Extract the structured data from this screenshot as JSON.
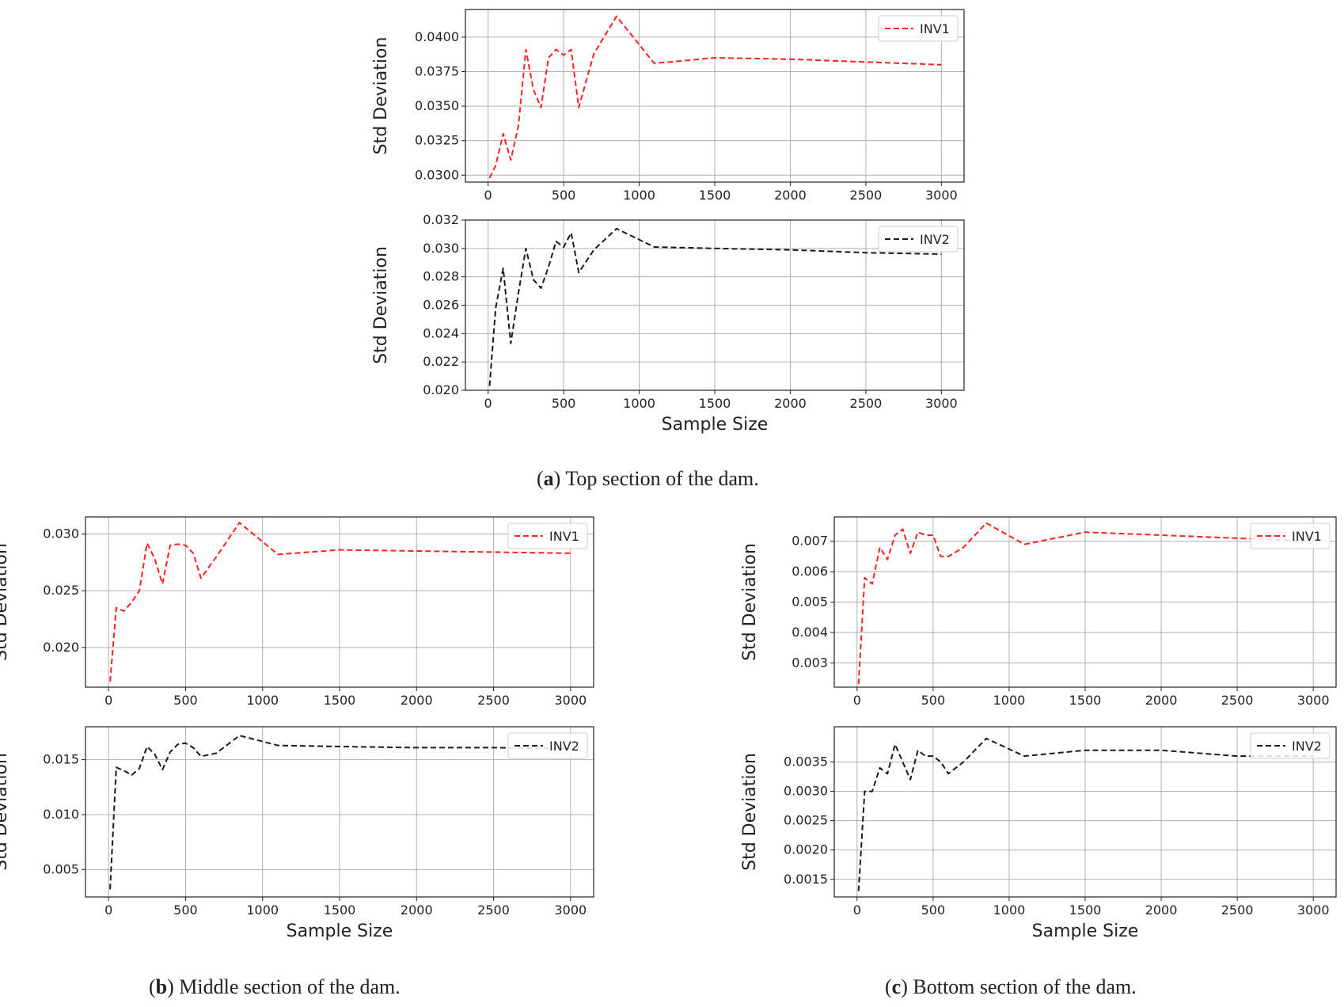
{
  "captions": {
    "a": {
      "prefix": "(",
      "letter": "a",
      "suffix": ") Top section of the dam."
    },
    "b": {
      "prefix": "(",
      "letter": "b",
      "suffix": ") Middle section of the dam."
    },
    "c": {
      "prefix": "(",
      "letter": "c",
      "suffix": ") Bottom section of the dam."
    }
  },
  "chart_data": [
    {
      "id": "a-inv1",
      "type": "line",
      "panel": "a",
      "ylabel": "Std Deviation",
      "xlabel": "",
      "xlim": [
        -150,
        3150
      ],
      "ylim": [
        0.0295,
        0.042
      ],
      "xticks": [
        0,
        500,
        1000,
        1500,
        2000,
        2500,
        3000
      ],
      "yticks": [
        0.03,
        0.0325,
        0.035,
        0.0375,
        0.04
      ],
      "ytick_labels": [
        "0.0300",
        "0.0325",
        "0.0350",
        "0.0375",
        "0.0400"
      ],
      "grid": true,
      "legend_position": "top-right",
      "series": [
        {
          "name": "INV1",
          "color": "#ff2020",
          "x": [
            10,
            50,
            100,
            150,
            200,
            250,
            300,
            350,
            400,
            450,
            500,
            550,
            600,
            700,
            850,
            1100,
            1500,
            2000,
            2500,
            3000
          ],
          "y": [
            0.0298,
            0.0307,
            0.033,
            0.0311,
            0.0335,
            0.0391,
            0.0362,
            0.0349,
            0.0385,
            0.0391,
            0.0387,
            0.0391,
            0.0349,
            0.0388,
            0.0415,
            0.0381,
            0.0385,
            0.0384,
            0.0382,
            0.038
          ]
        }
      ]
    },
    {
      "id": "a-inv2",
      "type": "line",
      "panel": "a",
      "ylabel": "Std Deviation",
      "xlabel": "Sample Size",
      "xlim": [
        -150,
        3150
      ],
      "ylim": [
        0.02,
        0.032
      ],
      "xticks": [
        0,
        500,
        1000,
        1500,
        2000,
        2500,
        3000
      ],
      "yticks": [
        0.02,
        0.022,
        0.024,
        0.026,
        0.028,
        0.03,
        0.032
      ],
      "ytick_labels": [
        "0.020",
        "0.022",
        "0.024",
        "0.026",
        "0.028",
        "0.030",
        "0.032"
      ],
      "grid": true,
      "legend_position": "top-right",
      "series": [
        {
          "name": "INV2",
          "color": "#1a1a1a",
          "x": [
            10,
            50,
            100,
            150,
            200,
            250,
            300,
            350,
            400,
            450,
            500,
            550,
            600,
            700,
            850,
            1100,
            1500,
            2000,
            2500,
            3000
          ],
          "y": [
            0.0203,
            0.0258,
            0.0286,
            0.0233,
            0.0268,
            0.03,
            0.0278,
            0.0272,
            0.0287,
            0.0305,
            0.0301,
            0.0311,
            0.0283,
            0.0299,
            0.0314,
            0.0301,
            0.03,
            0.0299,
            0.0297,
            0.0296
          ]
        }
      ]
    },
    {
      "id": "b-inv1",
      "type": "line",
      "panel": "b",
      "ylabel": "Std Deviation",
      "xlabel": "",
      "xlim": [
        -150,
        3150
      ],
      "ylim": [
        0.0165,
        0.0315
      ],
      "xticks": [
        0,
        500,
        1000,
        1500,
        2000,
        2500,
        3000
      ],
      "yticks": [
        0.02,
        0.025,
        0.03
      ],
      "ytick_labels": [
        "0.020",
        "0.025",
        "0.030"
      ],
      "grid": true,
      "legend_position": "top-right",
      "series": [
        {
          "name": "INV1",
          "color": "#ff2020",
          "x": [
            10,
            50,
            100,
            150,
            200,
            250,
            300,
            350,
            400,
            450,
            500,
            550,
            600,
            700,
            850,
            1100,
            1500,
            2000,
            2500,
            3000
          ],
          "y": [
            0.017,
            0.0235,
            0.0232,
            0.024,
            0.025,
            0.0292,
            0.0278,
            0.0256,
            0.029,
            0.0291,
            0.029,
            0.0283,
            0.0261,
            0.028,
            0.031,
            0.0282,
            0.0286,
            0.0285,
            0.0284,
            0.0283
          ]
        }
      ]
    },
    {
      "id": "b-inv2",
      "type": "line",
      "panel": "b",
      "ylabel": "Std Deviation",
      "xlabel": "Sample Size",
      "xlim": [
        -150,
        3150
      ],
      "ylim": [
        0.0025,
        0.018
      ],
      "xticks": [
        0,
        500,
        1000,
        1500,
        2000,
        2500,
        3000
      ],
      "yticks": [
        0.005,
        0.01,
        0.015
      ],
      "ytick_labels": [
        "0.005",
        "0.010",
        "0.015"
      ],
      "grid": true,
      "legend_position": "top-right",
      "series": [
        {
          "name": "INV2",
          "color": "#1a1a1a",
          "x": [
            10,
            50,
            100,
            150,
            200,
            250,
            300,
            350,
            400,
            450,
            500,
            550,
            600,
            700,
            850,
            1100,
            1500,
            2000,
            2500,
            3000
          ],
          "y": [
            0.0032,
            0.0143,
            0.014,
            0.0136,
            0.0142,
            0.0162,
            0.0155,
            0.0141,
            0.0157,
            0.0164,
            0.0165,
            0.0161,
            0.0153,
            0.0156,
            0.0172,
            0.0163,
            0.0162,
            0.0161,
            0.0161,
            0.016
          ]
        }
      ]
    },
    {
      "id": "c-inv1",
      "type": "line",
      "panel": "c",
      "ylabel": "Std Deviation",
      "xlabel": "",
      "xlim": [
        -150,
        3150
      ],
      "ylim": [
        0.0022,
        0.0078
      ],
      "xticks": [
        0,
        500,
        1000,
        1500,
        2000,
        2500,
        3000
      ],
      "yticks": [
        0.003,
        0.004,
        0.005,
        0.006,
        0.007
      ],
      "ytick_labels": [
        "0.003",
        "0.004",
        "0.005",
        "0.006",
        "0.007"
      ],
      "grid": true,
      "legend_position": "top-right",
      "series": [
        {
          "name": "INV1",
          "color": "#ff2020",
          "x": [
            10,
            50,
            100,
            150,
            200,
            250,
            300,
            350,
            400,
            450,
            500,
            550,
            600,
            700,
            850,
            1100,
            1500,
            2000,
            2500,
            3000
          ],
          "y": [
            0.0023,
            0.0058,
            0.0056,
            0.0068,
            0.0064,
            0.0072,
            0.0074,
            0.0066,
            0.0073,
            0.0072,
            0.0072,
            0.0065,
            0.0065,
            0.0068,
            0.0076,
            0.0069,
            0.0073,
            0.0072,
            0.0071,
            0.007
          ]
        }
      ]
    },
    {
      "id": "c-inv2",
      "type": "line",
      "panel": "c",
      "ylabel": "Std Deviation",
      "xlabel": "Sample Size",
      "xlim": [
        -150,
        3150
      ],
      "ylim": [
        0.0012,
        0.0041
      ],
      "xticks": [
        0,
        500,
        1000,
        1500,
        2000,
        2500,
        3000
      ],
      "yticks": [
        0.0015,
        0.002,
        0.0025,
        0.003,
        0.0035
      ],
      "ytick_labels": [
        "0.0015",
        "0.0020",
        "0.0025",
        "0.0030",
        "0.0035"
      ],
      "grid": true,
      "legend_position": "top-right",
      "series": [
        {
          "name": "INV2",
          "color": "#1a1a1a",
          "x": [
            10,
            50,
            100,
            150,
            200,
            250,
            300,
            350,
            400,
            450,
            500,
            550,
            600,
            700,
            850,
            1100,
            1500,
            2000,
            2500,
            3000
          ],
          "y": [
            0.0013,
            0.003,
            0.003,
            0.0034,
            0.0033,
            0.0038,
            0.0035,
            0.0032,
            0.0037,
            0.0036,
            0.0036,
            0.0035,
            0.0033,
            0.0035,
            0.0039,
            0.0036,
            0.0037,
            0.0037,
            0.0036,
            0.0036
          ]
        }
      ]
    }
  ]
}
